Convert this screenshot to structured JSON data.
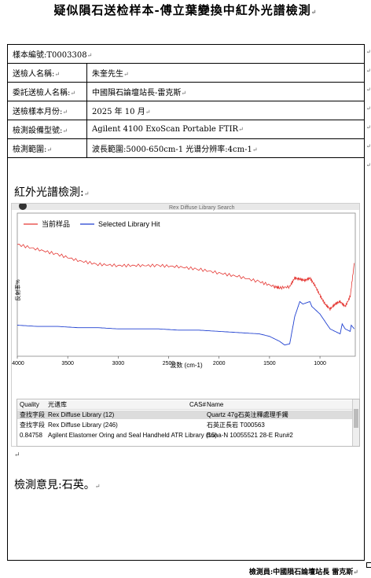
{
  "title": "疑似隕石送检样本-傅立葉變換中紅外光譜檢測",
  "info_rows": [
    {
      "label": "樣本編號:T0003308",
      "value": ""
    },
    {
      "label": "送檢人名稱:",
      "value": "朱奎先生"
    },
    {
      "label": "委託送檢人名稱:",
      "value": "中國隕石論壇站長-雷克斯"
    },
    {
      "label": "送檢樣本月份:",
      "value": "2025 年 10 月"
    },
    {
      "label": "檢測設備型號:",
      "value": "Agilent 4100 ExoScan Portable FTIR"
    },
    {
      "label": "檢測範圍:",
      "value": "波長範圍:5000-650cm-1  光谱分辨率:4cm-1"
    }
  ],
  "spectrum_heading": "紅外光譜檢測:",
  "spectrum": {
    "top_bar_text": "Rex Diffuse Library Search",
    "legend": [
      {
        "name": "当前样品",
        "color": "#e53935"
      },
      {
        "name": "Selected Library Hit",
        "color": "#1e3fd0"
      }
    ],
    "ylabel": "反射率%",
    "xlabel": "波数 (cm-1)"
  },
  "chart_data": {
    "type": "line",
    "xlabel": "波数 (cm-1)",
    "ylabel": "反射率%",
    "xlim": [
      4000,
      650
    ],
    "ylim": [
      0,
      1
    ],
    "x_ticks": [
      4000,
      3500,
      3000,
      2500,
      2000,
      1500,
      1000
    ],
    "series": [
      {
        "name": "当前样品",
        "color": "#e53935",
        "x": [
          4000,
          3800,
          3600,
          3400,
          3200,
          3000,
          2800,
          2600,
          2400,
          2200,
          2000,
          1800,
          1600,
          1450,
          1400,
          1300,
          1250,
          1200,
          1150,
          1100,
          1050,
          1000,
          950,
          900,
          850,
          800,
          750,
          700,
          660
        ],
        "y": [
          0.9,
          0.86,
          0.82,
          0.77,
          0.74,
          0.73,
          0.73,
          0.73,
          0.72,
          0.7,
          0.67,
          0.64,
          0.6,
          0.56,
          0.55,
          0.56,
          0.63,
          0.62,
          0.61,
          0.63,
          0.57,
          0.49,
          0.42,
          0.38,
          0.42,
          0.44,
          0.4,
          0.48,
          0.75
        ]
      },
      {
        "name": "Selected Library Hit",
        "color": "#1e3fd0",
        "x": [
          4000,
          3800,
          3600,
          3400,
          3200,
          3000,
          2800,
          2600,
          2400,
          2200,
          2000,
          1800,
          1600,
          1500,
          1400,
          1350,
          1300,
          1250,
          1200,
          1170,
          1100,
          1080,
          1000,
          950,
          900,
          800,
          780,
          750,
          700,
          690,
          660
        ],
        "y": [
          0.25,
          0.24,
          0.24,
          0.23,
          0.23,
          0.22,
          0.22,
          0.22,
          0.21,
          0.21,
          0.2,
          0.19,
          0.18,
          0.16,
          0.12,
          0.09,
          0.1,
          0.32,
          0.44,
          0.42,
          0.44,
          0.4,
          0.34,
          0.28,
          0.22,
          0.18,
          0.26,
          0.22,
          0.2,
          0.25,
          0.22
        ]
      }
    ]
  },
  "results_table": {
    "headers": [
      "Quality",
      "光谱库",
      "CAS#",
      "Name"
    ],
    "rows": [
      [
        "查找字段",
        "Rex Diffuse Library (12)",
        "",
        "Quartz 47g石英注釋處理手鐲"
      ],
      [
        "查找字段",
        "Rex Diffuse Library (246)",
        "",
        "石英正長岩 T000563"
      ],
      [
        "0.84758",
        "Agilent Elastomer Oring and Seal Handheld ATR Library (15)",
        "",
        "Buna-N 10055521 28-E Run#2"
      ]
    ]
  },
  "opinion": "檢測意見:石英。",
  "inspector": "檢測員:中國隕石論壇站長 雷克斯"
}
